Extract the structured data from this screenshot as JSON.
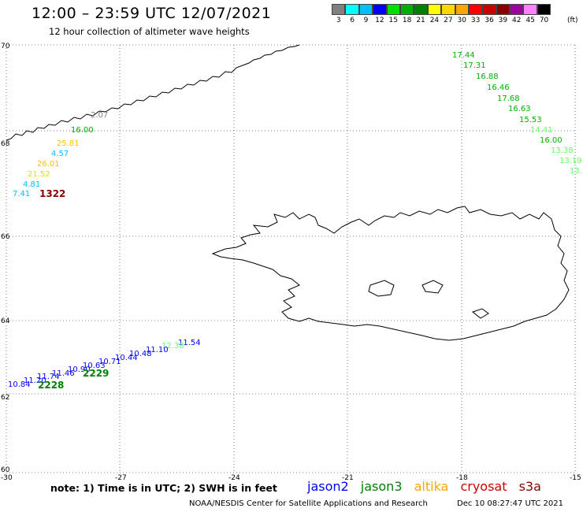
{
  "header": {
    "title": "12:00 – 23:59 UTC 12/07/2021",
    "subtitle": "12 hour collection of altimeter wave heights"
  },
  "legend": {
    "values": [
      "3",
      "6",
      "9",
      "12",
      "15",
      "18",
      "21",
      "24",
      "27",
      "30",
      "33",
      "36",
      "39",
      "42",
      "45",
      "70"
    ],
    "colors": [
      "#808080",
      "#00ffff",
      "#00bfff",
      "#0000ff",
      "#00e000",
      "#00b000",
      "#008000",
      "#ffff00",
      "#ffd700",
      "#ffa500",
      "#ff0000",
      "#cc0000",
      "#8b0000",
      "#a000a0",
      "#ff80ff",
      "#000000"
    ],
    "unit": "(ft)"
  },
  "axes": {
    "lon_labels": [
      "-30",
      "-27",
      "-24",
      "-21",
      "-18",
      "-15"
    ],
    "lat_labels": [
      "70",
      "68",
      "66",
      "64",
      "62",
      "60"
    ]
  },
  "annotations": [
    {
      "text": "17.44",
      "color": "#00b000"
    },
    {
      "text": "17.31",
      "color": "#00b000"
    },
    {
      "text": "16.88",
      "color": "#00b000"
    },
    {
      "text": "16.46",
      "color": "#00b000"
    },
    {
      "text": "17.68",
      "color": "#00b000"
    },
    {
      "text": "16.63",
      "color": "#00b000"
    },
    {
      "text": "15.53",
      "color": "#00b000"
    },
    {
      "text": "14.41",
      "color": "#66ff66"
    },
    {
      "text": "16.00",
      "color": "#00b000"
    },
    {
      "text": "13.38",
      "color": "#66ff66"
    },
    {
      "text": "13.19",
      "color": "#66ff66"
    },
    {
      "text": "13.",
      "color": "#66ff66"
    },
    {
      "text": "2.07",
      "color": "#808080"
    },
    {
      "text": "16.00",
      "color": "#00b000"
    },
    {
      "text": "25.81",
      "color": "#ffc000"
    },
    {
      "text": "4.57",
      "color": "#00bfff"
    },
    {
      "text": "26.01",
      "color": "#ffc000"
    },
    {
      "text": "21.52",
      "color": "#e8e000"
    },
    {
      "text": "4.81",
      "color": "#00bfff"
    },
    {
      "text": "7.41",
      "color": "#00bfff"
    },
    {
      "text": "11.54",
      "color": "#0000ff"
    },
    {
      "text": "12.38",
      "color": "#66ff66"
    },
    {
      "text": "11.10",
      "color": "#0000ff"
    },
    {
      "text": "10.48",
      "color": "#0000ff"
    },
    {
      "text": "10.44",
      "color": "#0000ff"
    },
    {
      "text": "10.71",
      "color": "#0000ff"
    },
    {
      "text": "10.63",
      "color": "#0000ff"
    },
    {
      "text": "10.90",
      "color": "#0000ff"
    },
    {
      "text": "11.46",
      "color": "#0000ff"
    },
    {
      "text": "11.74",
      "color": "#0000ff"
    },
    {
      "text": "11.20",
      "color": "#0000ff"
    },
    {
      "text": "10.84",
      "color": "#0000ff"
    }
  ],
  "track_labels": [
    {
      "text": "1322",
      "color": "#8b0000"
    },
    {
      "text": "2229",
      "color": "#008000"
    },
    {
      "text": "2228",
      "color": "#008000"
    }
  ],
  "footer": {
    "note": "note:  1) Time is in UTC;  2) SWH is in feet",
    "satellites": [
      {
        "name": "jason2",
        "color": "#0000ff"
      },
      {
        "name": "jason3",
        "color": "#008000"
      },
      {
        "name": "altika",
        "color": "#ffa500"
      },
      {
        "name": "cryosat",
        "color": "#cc0000"
      },
      {
        "name": "s3a",
        "color": "#8b0000"
      }
    ],
    "credit": "NOAA/NESDIS Center for Satellite Applications and Research",
    "timestamp": "Dec 10 08:27:47 UTC 2021"
  }
}
